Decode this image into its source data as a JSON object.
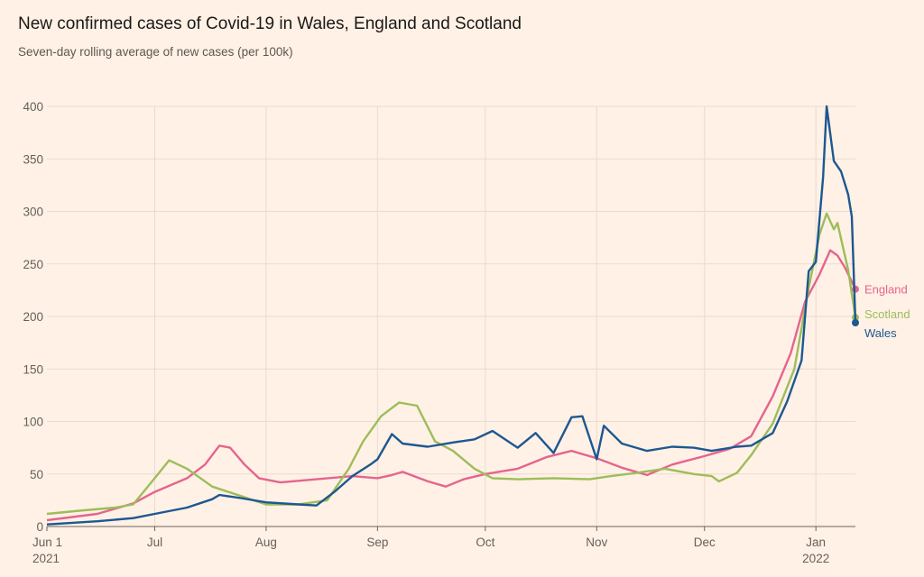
{
  "title": "New confirmed cases of Covid-19 in Wales, England and Scotland",
  "subtitle": "Seven-day rolling average of new cases (per 100k)",
  "chart_data": {
    "type": "line",
    "title": "New confirmed cases of Covid-19 in Wales, England and Scotland",
    "subtitle": "Seven-day rolling average of new cases (per 100k)",
    "ylim": [
      0,
      400
    ],
    "yticks": [
      0,
      50,
      100,
      150,
      200,
      250,
      300,
      350,
      400
    ],
    "xlim": [
      "2021-06-01",
      "2022-01-12"
    ],
    "xticks": [
      {
        "date": "2021-06-01",
        "label": "Jun 1",
        "sub": "2021"
      },
      {
        "date": "2021-07-01",
        "label": "Jul",
        "sub": ""
      },
      {
        "date": "2021-08-01",
        "label": "Aug",
        "sub": ""
      },
      {
        "date": "2021-09-01",
        "label": "Sep",
        "sub": ""
      },
      {
        "date": "2021-10-01",
        "label": "Oct",
        "sub": ""
      },
      {
        "date": "2021-11-01",
        "label": "Nov",
        "sub": ""
      },
      {
        "date": "2021-12-01",
        "label": "Dec",
        "sub": ""
      },
      {
        "date": "2022-01-01",
        "label": "Jan",
        "sub": "2022"
      }
    ],
    "grid": true,
    "legend": "end-of-line labels",
    "series": [
      {
        "name": "England",
        "color": "#e5648f",
        "end_value": 226,
        "points": [
          [
            "2021-06-01",
            6
          ],
          [
            "2021-06-15",
            12
          ],
          [
            "2021-06-25",
            22
          ],
          [
            "2021-07-01",
            33
          ],
          [
            "2021-07-10",
            46
          ],
          [
            "2021-07-15",
            59
          ],
          [
            "2021-07-19",
            77
          ],
          [
            "2021-07-22",
            75
          ],
          [
            "2021-07-26",
            59
          ],
          [
            "2021-07-30",
            46
          ],
          [
            "2021-08-05",
            42
          ],
          [
            "2021-08-15",
            45
          ],
          [
            "2021-08-25",
            48
          ],
          [
            "2021-09-01",
            46
          ],
          [
            "2021-09-05",
            49
          ],
          [
            "2021-09-08",
            52
          ],
          [
            "2021-09-15",
            43
          ],
          [
            "2021-09-20",
            38
          ],
          [
            "2021-09-25",
            45
          ],
          [
            "2021-10-01",
            50
          ],
          [
            "2021-10-10",
            55
          ],
          [
            "2021-10-18",
            66
          ],
          [
            "2021-10-25",
            72
          ],
          [
            "2021-11-01",
            65
          ],
          [
            "2021-11-08",
            56
          ],
          [
            "2021-11-15",
            49
          ],
          [
            "2021-11-22",
            59
          ],
          [
            "2021-12-01",
            67
          ],
          [
            "2021-12-08",
            74
          ],
          [
            "2021-12-14",
            86
          ],
          [
            "2021-12-20",
            124
          ],
          [
            "2021-12-25",
            165
          ],
          [
            "2021-12-29",
            214
          ],
          [
            "2022-01-02",
            240
          ],
          [
            "2022-01-05",
            263
          ],
          [
            "2022-01-07",
            258
          ],
          [
            "2022-01-09",
            247
          ],
          [
            "2022-01-12",
            226
          ]
        ]
      },
      {
        "name": "Scotland",
        "color": "#9dbd5a",
        "end_value": 199,
        "points": [
          [
            "2021-06-01",
            12
          ],
          [
            "2021-06-10",
            15
          ],
          [
            "2021-06-20",
            18
          ],
          [
            "2021-06-25",
            21
          ],
          [
            "2021-07-01",
            46
          ],
          [
            "2021-07-05",
            63
          ],
          [
            "2021-07-10",
            55
          ],
          [
            "2021-07-17",
            38
          ],
          [
            "2021-07-25",
            29
          ],
          [
            "2021-08-01",
            21
          ],
          [
            "2021-08-10",
            21
          ],
          [
            "2021-08-18",
            25
          ],
          [
            "2021-08-24",
            55
          ],
          [
            "2021-08-28",
            81
          ],
          [
            "2021-09-02",
            105
          ],
          [
            "2021-09-07",
            118
          ],
          [
            "2021-09-12",
            115
          ],
          [
            "2021-09-17",
            81
          ],
          [
            "2021-09-22",
            72
          ],
          [
            "2021-09-28",
            55
          ],
          [
            "2021-10-03",
            46
          ],
          [
            "2021-10-10",
            45
          ],
          [
            "2021-10-20",
            46
          ],
          [
            "2021-10-30",
            45
          ],
          [
            "2021-11-05",
            48
          ],
          [
            "2021-11-12",
            51
          ],
          [
            "2021-11-20",
            55
          ],
          [
            "2021-11-28",
            50
          ],
          [
            "2021-12-03",
            48
          ],
          [
            "2021-12-05",
            43
          ],
          [
            "2021-12-10",
            51
          ],
          [
            "2021-12-14",
            68
          ],
          [
            "2021-12-20",
            98
          ],
          [
            "2021-12-26",
            150
          ],
          [
            "2021-12-30",
            227
          ],
          [
            "2022-01-02",
            278
          ],
          [
            "2022-01-04",
            298
          ],
          [
            "2022-01-06",
            283
          ],
          [
            "2022-01-07",
            289
          ],
          [
            "2022-01-10",
            244
          ],
          [
            "2022-01-12",
            199
          ]
        ]
      },
      {
        "name": "Wales",
        "color": "#1d5792",
        "end_value": 194,
        "points": [
          [
            "2021-06-01",
            2
          ],
          [
            "2021-06-15",
            5
          ],
          [
            "2021-06-25",
            8
          ],
          [
            "2021-07-01",
            12
          ],
          [
            "2021-07-10",
            18
          ],
          [
            "2021-07-17",
            26
          ],
          [
            "2021-07-19",
            30
          ],
          [
            "2021-07-25",
            27
          ],
          [
            "2021-08-01",
            23
          ],
          [
            "2021-08-10",
            21
          ],
          [
            "2021-08-15",
            20
          ],
          [
            "2021-08-20",
            33
          ],
          [
            "2021-08-25",
            48
          ],
          [
            "2021-08-30",
            59
          ],
          [
            "2021-09-01",
            64
          ],
          [
            "2021-09-05",
            88
          ],
          [
            "2021-09-08",
            79
          ],
          [
            "2021-09-15",
            76
          ],
          [
            "2021-09-22",
            80
          ],
          [
            "2021-09-28",
            83
          ],
          [
            "2021-10-03",
            91
          ],
          [
            "2021-10-10",
            75
          ],
          [
            "2021-10-15",
            89
          ],
          [
            "2021-10-20",
            70
          ],
          [
            "2021-10-25",
            104
          ],
          [
            "2021-10-28",
            105
          ],
          [
            "2021-11-01",
            64
          ],
          [
            "2021-11-03",
            96
          ],
          [
            "2021-11-08",
            79
          ],
          [
            "2021-11-15",
            72
          ],
          [
            "2021-11-22",
            76
          ],
          [
            "2021-11-28",
            75
          ],
          [
            "2021-12-03",
            72
          ],
          [
            "2021-12-10",
            76
          ],
          [
            "2021-12-14",
            77
          ],
          [
            "2021-12-20",
            89
          ],
          [
            "2021-12-24",
            119
          ],
          [
            "2021-12-28",
            158
          ],
          [
            "2021-12-30",
            243
          ],
          [
            "2022-01-01",
            252
          ],
          [
            "2022-01-03",
            333
          ],
          [
            "2022-01-04",
            400
          ],
          [
            "2022-01-06",
            348
          ],
          [
            "2022-01-08",
            338
          ],
          [
            "2022-01-10",
            316
          ],
          [
            "2022-01-11",
            295
          ],
          [
            "2022-01-12",
            194
          ]
        ]
      }
    ]
  }
}
